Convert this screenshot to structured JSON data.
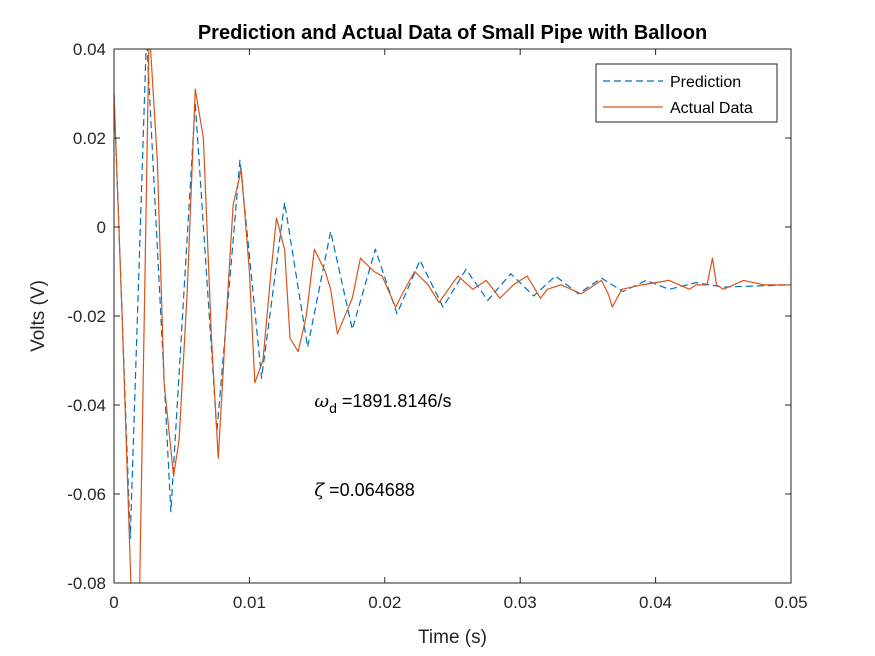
{
  "chart_data": {
    "type": "line",
    "title": "Prediction and Actual Data of Small Pipe with Balloon",
    "xlabel": "Time (s)",
    "ylabel": "Volts (V)",
    "xlim": [
      0,
      0.05
    ],
    "ylim": [
      -0.08,
      0.04
    ],
    "xticks": [
      0,
      0.01,
      0.02,
      0.03,
      0.04,
      0.05
    ],
    "xtick_labels": [
      "0",
      "0.01",
      "0.02",
      "0.03",
      "0.04",
      "0.05"
    ],
    "yticks": [
      -0.08,
      -0.06,
      -0.04,
      -0.02,
      0,
      0.02,
      0.04
    ],
    "ytick_labels": [
      "-0.08",
      "-0.06",
      "-0.04",
      "-0.02",
      "0",
      "0.02",
      "0.04"
    ],
    "grid": false,
    "legend_location": "top-right",
    "series": [
      {
        "name": "Prediction",
        "style": "dashed",
        "color": "#0072BD",
        "x": [
          0,
          0.0012,
          0.0024,
          0.0042,
          0.006,
          0.0076,
          0.0093,
          0.0109,
          0.0126,
          0.0143,
          0.016,
          0.0176,
          0.0193,
          0.0209,
          0.0226,
          0.0243,
          0.026,
          0.0276,
          0.0293,
          0.031,
          0.0326,
          0.0343,
          0.036,
          0.0376,
          0.0393,
          0.041,
          0.043,
          0.045,
          0.05
        ],
        "y": [
          0.03,
          -0.07,
          0.043,
          -0.064,
          0.028,
          -0.046,
          0.015,
          -0.034,
          0.0055,
          -0.027,
          -0.001,
          -0.023,
          -0.005,
          -0.0195,
          -0.0075,
          -0.018,
          -0.0095,
          -0.0165,
          -0.0105,
          -0.0155,
          -0.011,
          -0.015,
          -0.0115,
          -0.0145,
          -0.012,
          -0.014,
          -0.0125,
          -0.0135,
          -0.013
        ]
      },
      {
        "name": "Actual Data",
        "style": "solid",
        "color": "#D95319",
        "x": [
          0,
          0.0006,
          0.0013,
          0.0019,
          0.0026,
          0.0032,
          0.0037,
          0.0044,
          0.0048,
          0.0054,
          0.006,
          0.0066,
          0.0072,
          0.0077,
          0.0082,
          0.0088,
          0.0094,
          0.01,
          0.0104,
          0.011,
          0.0116,
          0.012,
          0.0126,
          0.013,
          0.0136,
          0.0142,
          0.0148,
          0.0156,
          0.016,
          0.0165,
          0.0176,
          0.0182,
          0.0192,
          0.0198,
          0.0208,
          0.0213,
          0.0222,
          0.0232,
          0.024,
          0.0254,
          0.0265,
          0.0275,
          0.0285,
          0.0295,
          0.0305,
          0.0315,
          0.032,
          0.033,
          0.0345,
          0.036,
          0.0365,
          0.0368,
          0.0375,
          0.039,
          0.041,
          0.0425,
          0.043,
          0.0438,
          0.0442,
          0.0445,
          0.045,
          0.0465,
          0.048,
          0.05
        ],
        "y": [
          0.03,
          -0.02,
          -0.085,
          -0.08,
          0.045,
          0.015,
          -0.035,
          -0.056,
          -0.048,
          -0.015,
          0.031,
          0.02,
          -0.025,
          -0.052,
          -0.025,
          0.005,
          0.013,
          -0.01,
          -0.035,
          -0.03,
          -0.01,
          0.002,
          -0.005,
          -0.025,
          -0.028,
          -0.02,
          -0.005,
          -0.01,
          -0.014,
          -0.024,
          -0.016,
          -0.007,
          -0.01,
          -0.011,
          -0.018,
          -0.015,
          -0.01,
          -0.013,
          -0.017,
          -0.011,
          -0.014,
          -0.012,
          -0.016,
          -0.013,
          -0.011,
          -0.016,
          -0.014,
          -0.013,
          -0.015,
          -0.012,
          -0.015,
          -0.018,
          -0.014,
          -0.013,
          -0.012,
          -0.014,
          -0.013,
          -0.013,
          -0.007,
          -0.013,
          -0.014,
          -0.012,
          -0.013,
          -0.013
        ]
      }
    ],
    "annotations": [
      {
        "symbol": "ω",
        "subscript": "d",
        "text": " =1891.8146/s",
        "x": 0.0148,
        "y": -0.0405
      },
      {
        "symbol": "ζ",
        "subscript": "",
        "text": " =0.064688",
        "x": 0.0148,
        "y": -0.0605
      }
    ]
  }
}
